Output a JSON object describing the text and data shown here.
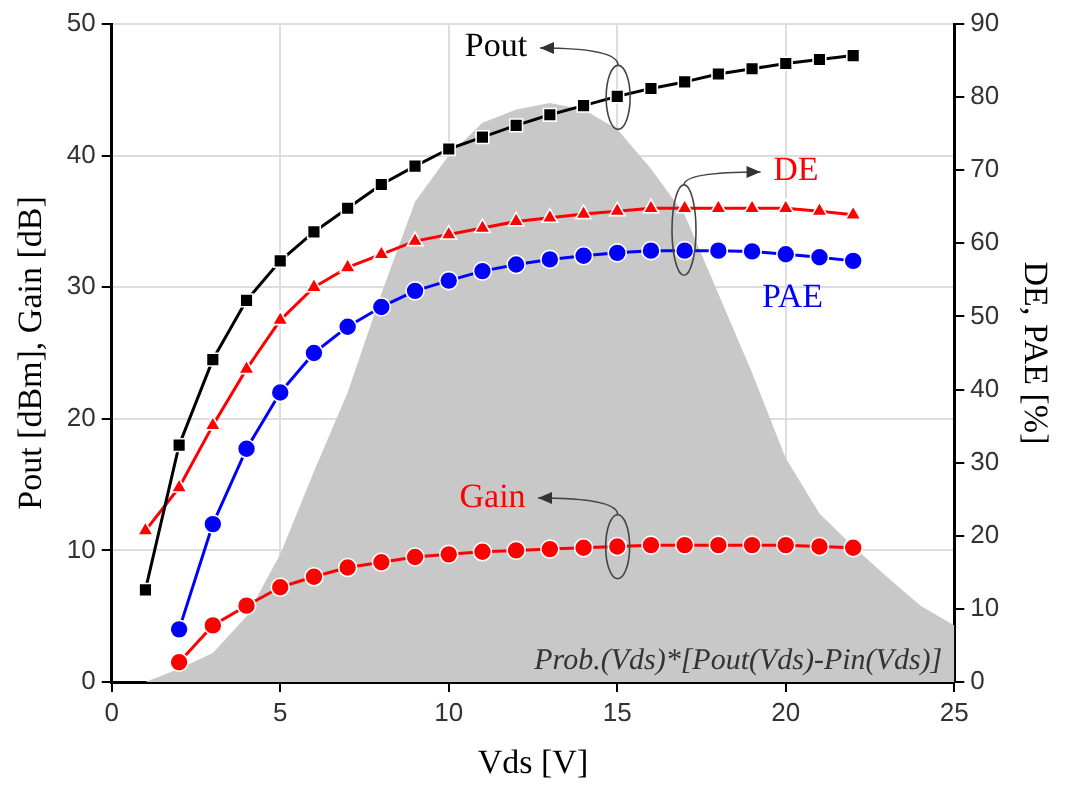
{
  "chart_data": {
    "type": "line",
    "xlabel": "Vds [V]",
    "ylabel": "Pout [dBm], Gain [dB]",
    "y2label": "DE, PAE [%]",
    "xlim": [
      0,
      25
    ],
    "xticks": [
      0,
      5,
      10,
      15,
      20,
      25
    ],
    "ylim": [
      0,
      50
    ],
    "yticks": [
      0,
      10,
      20,
      30,
      40,
      50
    ],
    "y2lim": [
      0,
      90
    ],
    "y2ticks": [
      0,
      10,
      20,
      30,
      40,
      50,
      60,
      70,
      80,
      90
    ],
    "grid": true,
    "legend": false,
    "series": [
      {
        "name": "Prob.(Vds)*[Pout(Vds)-Pin(Vds)]",
        "type": "area",
        "color": "#c8c8c8",
        "marker": "none",
        "x": [
          0,
          1,
          2,
          3,
          4,
          5,
          6,
          7,
          8,
          9,
          10,
          11,
          12,
          13,
          14,
          15,
          16,
          17,
          18,
          19,
          20,
          21,
          22,
          23,
          24,
          25
        ],
        "values": [
          0,
          0,
          1,
          2.2,
          5,
          9.7,
          16,
          22,
          29.5,
          36.5,
          40,
          42.5,
          43.5,
          44,
          43.5,
          42,
          39,
          35.5,
          29.5,
          23.5,
          17,
          12.8,
          10.3,
          8,
          5.8,
          4.3
        ]
      },
      {
        "name": "Pout",
        "color": "#000000",
        "marker": "square",
        "x": [
          1,
          2,
          3,
          4,
          5,
          6,
          7,
          8,
          9,
          10,
          11,
          12,
          13,
          14,
          15,
          16,
          17,
          18,
          19,
          20,
          21,
          22
        ],
        "values": [
          7,
          18,
          24.5,
          29,
          32,
          34.2,
          36,
          37.8,
          39.2,
          40.5,
          41.4,
          42.3,
          43.1,
          43.8,
          44.5,
          45.1,
          45.6,
          46.2,
          46.6,
          47,
          47.3,
          47.6
        ]
      },
      {
        "name": "DE",
        "axis": "y2",
        "color": "#ff0000",
        "marker": "triangle",
        "x": [
          1,
          2,
          3,
          4,
          5,
          6,
          7,
          8,
          9,
          10,
          11,
          12,
          13,
          14,
          15,
          16,
          17,
          18,
          19,
          20,
          21,
          22
        ],
        "values": [
          20.7,
          26.6,
          35.1,
          42.8,
          49.5,
          54,
          56.7,
          58.5,
          60.3,
          61.2,
          62.1,
          63,
          63.5,
          64,
          64.4,
          64.8,
          64.8,
          64.8,
          64.8,
          64.8,
          64.4,
          63.9
        ]
      },
      {
        "name": "PAE",
        "axis": "y2",
        "color": "#0000ff",
        "marker": "circle",
        "x": [
          2,
          3,
          4,
          5,
          6,
          7,
          8,
          9,
          10,
          11,
          12,
          13,
          14,
          15,
          16,
          17,
          18,
          19,
          20,
          21,
          22
        ],
        "values": [
          7.2,
          21.6,
          31.9,
          39.6,
          45,
          48.6,
          51.3,
          53.5,
          54.9,
          56.2,
          57.1,
          57.8,
          58.3,
          58.7,
          59,
          59,
          59,
          58.9,
          58.5,
          58.1,
          57.6
        ]
      },
      {
        "name": "Gain",
        "color": "#ff0000",
        "marker": "circle",
        "x": [
          2,
          3,
          4,
          5,
          6,
          7,
          8,
          9,
          10,
          11,
          12,
          13,
          14,
          15,
          16,
          17,
          18,
          19,
          20,
          21,
          22
        ],
        "values": [
          1.5,
          4.3,
          5.8,
          7.2,
          8,
          8.7,
          9.1,
          9.5,
          9.7,
          9.9,
          10,
          10.1,
          10.2,
          10.3,
          10.4,
          10.4,
          10.4,
          10.4,
          10.4,
          10.3,
          10.2
        ]
      }
    ]
  }
}
